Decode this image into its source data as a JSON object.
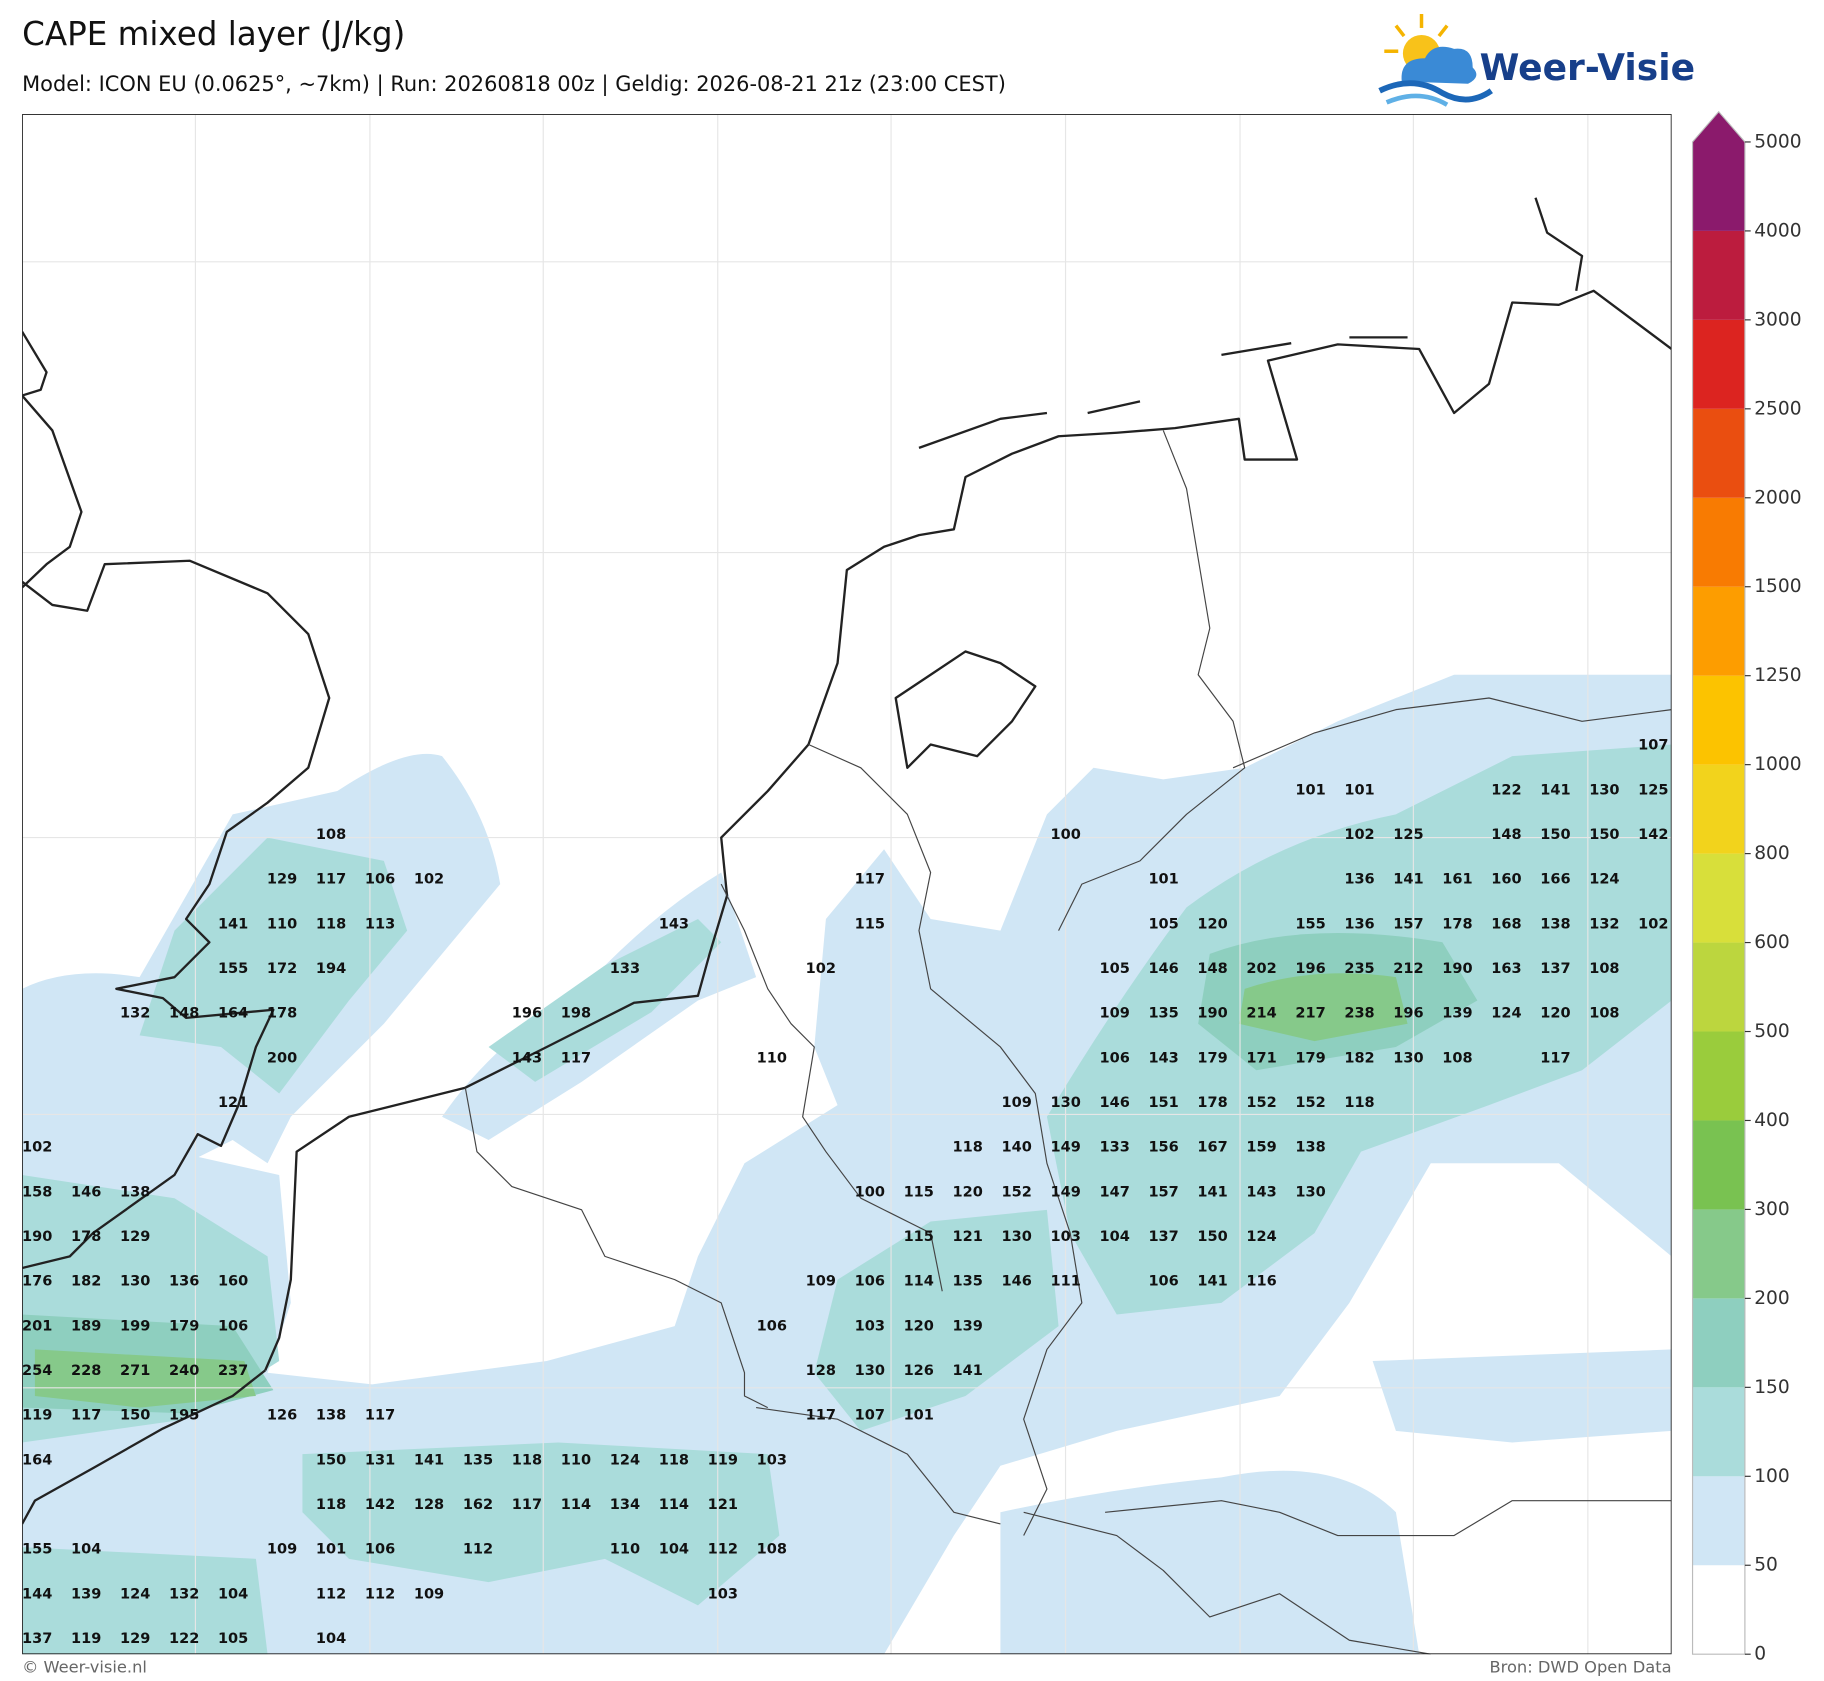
{
  "header": {
    "title": "CAPE mixed layer (J/kg)",
    "subtitle": "Model: ICON EU (0.0625°, ~7km)  |  Run: 20260818 00z  |  Geldig: 2026-08-21 21z (23:00 CEST)"
  },
  "logo": {
    "text": "Weer-Visie"
  },
  "colorbar": {
    "levels": [
      0,
      50,
      100,
      150,
      200,
      300,
      400,
      500,
      600,
      800,
      1000,
      1250,
      1500,
      2000,
      2500,
      3000,
      4000,
      5000
    ],
    "colors": [
      "#ffffff",
      "#d0e6f5",
      "#aadcdb",
      "#8ecfbf",
      "#86c98a",
      "#79c251",
      "#9acc3c",
      "#bcd63e",
      "#d8df3a",
      "#f2d31c",
      "#fcc300",
      "#fd9d00",
      "#f87b02",
      "#ea4e10",
      "#dc2420",
      "#bc1c3e",
      "#8b1a6c"
    ],
    "extend_color": "#8b1a6c"
  },
  "map": {
    "labels": [
      [
        null,
        null,
        null,
        null,
        null,
        null,
        null,
        null,
        null,
        null,
        null,
        null,
        null,
        null,
        null,
        null,
        null,
        null,
        null,
        null,
        null,
        null,
        null,
        null,
        null,
        null,
        null,
        null,
        null,
        null,
        null,
        null,
        null,
        107
      ],
      [
        null,
        null,
        null,
        null,
        null,
        null,
        null,
        null,
        null,
        null,
        null,
        null,
        null,
        null,
        null,
        null,
        null,
        null,
        null,
        null,
        null,
        null,
        null,
        null,
        null,
        null,
        101,
        101,
        null,
        null,
        122,
        141,
        130,
        125
      ],
      [
        null,
        null,
        null,
        null,
        null,
        null,
        108,
        null,
        null,
        null,
        null,
        null,
        null,
        null,
        null,
        null,
        null,
        null,
        null,
        null,
        null,
        100,
        null,
        null,
        null,
        null,
        null,
        102,
        125,
        null,
        148,
        150,
        150,
        142
      ],
      [
        null,
        null,
        null,
        null,
        null,
        129,
        117,
        106,
        102,
        null,
        null,
        null,
        null,
        null,
        null,
        null,
        null,
        117,
        null,
        null,
        null,
        null,
        null,
        101,
        null,
        null,
        null,
        136,
        141,
        161,
        160,
        166,
        124
      ],
      [
        null,
        null,
        null,
        null,
        141,
        110,
        118,
        113,
        null,
        null,
        null,
        null,
        null,
        143,
        null,
        null,
        null,
        115,
        null,
        null,
        null,
        null,
        null,
        105,
        120,
        null,
        155,
        136,
        157,
        178,
        168,
        138,
        132,
        102
      ],
      [
        null,
        null,
        null,
        null,
        155,
        172,
        194,
        null,
        null,
        null,
        null,
        null,
        133,
        null,
        null,
        null,
        102,
        null,
        null,
        null,
        null,
        null,
        105,
        146,
        148,
        202,
        196,
        235,
        212,
        190,
        163,
        137,
        108
      ],
      [
        null,
        null,
        132,
        148,
        164,
        178,
        null,
        null,
        null,
        null,
        196,
        198,
        null,
        null,
        null,
        null,
        null,
        null,
        null,
        null,
        null,
        null,
        109,
        135,
        190,
        214,
        217,
        238,
        196,
        139,
        124,
        120,
        108
      ],
      [
        null,
        null,
        null,
        null,
        null,
        200,
        null,
        null,
        null,
        null,
        143,
        117,
        null,
        null,
        null,
        110,
        null,
        null,
        null,
        null,
        null,
        null,
        106,
        143,
        179,
        171,
        179,
        182,
        130,
        108,
        null,
        117
      ],
      [
        null,
        null,
        null,
        null,
        121,
        null,
        null,
        null,
        null,
        null,
        null,
        null,
        null,
        null,
        null,
        null,
        null,
        null,
        null,
        null,
        109,
        130,
        146,
        151,
        178,
        152,
        152,
        118
      ],
      [
        102,
        null,
        null,
        null,
        null,
        null,
        null,
        null,
        null,
        null,
        null,
        null,
        null,
        null,
        null,
        null,
        null,
        null,
        null,
        118,
        140,
        149,
        133,
        156,
        167,
        159,
        138
      ],
      [
        158,
        146,
        138,
        null,
        null,
        null,
        null,
        null,
        null,
        null,
        null,
        null,
        null,
        null,
        null,
        null,
        null,
        100,
        115,
        120,
        152,
        149,
        147,
        157,
        141,
        143,
        130
      ],
      [
        190,
        178,
        129,
        null,
        null,
        null,
        null,
        null,
        null,
        null,
        null,
        null,
        null,
        null,
        null,
        null,
        null,
        null,
        115,
        121,
        130,
        103,
        104,
        137,
        150,
        124
      ],
      [
        176,
        182,
        130,
        136,
        160,
        null,
        null,
        null,
        null,
        null,
        null,
        null,
        null,
        null,
        null,
        null,
        109,
        106,
        114,
        135,
        146,
        111,
        null,
        106,
        141,
        116
      ],
      [
        201,
        189,
        199,
        179,
        106,
        null,
        null,
        null,
        null,
        null,
        null,
        null,
        null,
        null,
        null,
        106,
        null,
        103,
        120,
        139
      ],
      [
        254,
        228,
        271,
        240,
        237,
        null,
        null,
        null,
        null,
        null,
        null,
        null,
        null,
        null,
        null,
        null,
        128,
        130,
        126,
        141
      ],
      [
        119,
        117,
        150,
        195,
        null,
        126,
        138,
        117,
        null,
        null,
        null,
        null,
        null,
        null,
        null,
        null,
        117,
        107,
        101
      ],
      [
        164,
        null,
        null,
        null,
        null,
        null,
        150,
        131,
        141,
        135,
        118,
        110,
        124,
        118,
        119,
        103
      ],
      [
        null,
        null,
        null,
        null,
        null,
        null,
        118,
        142,
        128,
        162,
        117,
        114,
        134,
        114,
        121
      ],
      [
        155,
        104,
        null,
        null,
        null,
        109,
        101,
        106,
        null,
        112,
        null,
        null,
        110,
        104,
        112,
        108
      ],
      [
        144,
        139,
        124,
        132,
        104,
        null,
        112,
        112,
        109,
        null,
        null,
        null,
        null,
        null,
        103
      ],
      [
        137,
        119,
        129,
        122,
        105,
        null,
        104
      ]
    ]
  },
  "footer": {
    "left": "© Weer-visie.nl",
    "right": "Bron: DWD Open Data"
  }
}
